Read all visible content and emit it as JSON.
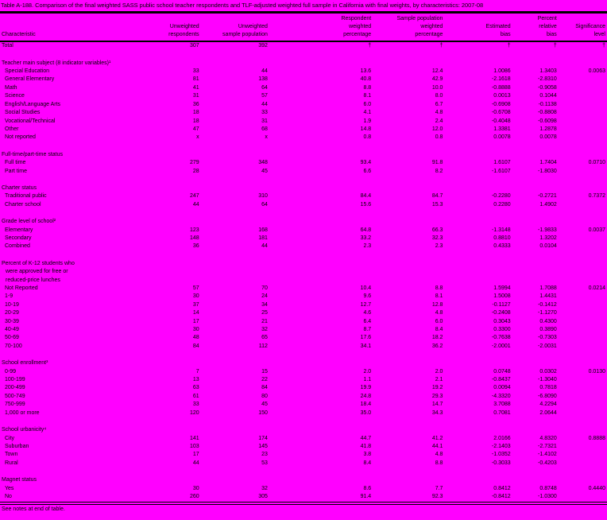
{
  "page": {
    "background_color": "#FF00FF",
    "text_color": "#000000"
  },
  "title": "Table A-188. Comparison of the final weighted SASS public school teacher respondents and TLF-adjusted weighted full sample in California with final weights, by characteristics: 2007-08",
  "footer": "See notes at end of table.",
  "table": {
    "columns": [
      "Characteristic",
      "Unweighted\nrespondents",
      "Unweighted\nsample population",
      "Respondent\nweighted\npercentage",
      "Sample population\nweighted\npercentage",
      "Estimated\nbias",
      "Percent\nrelative\nbias",
      "Significance\nlevel"
    ],
    "total_row": {
      "label": "Total",
      "cells": [
        "307",
        "392",
        "†",
        "†",
        "†",
        "†",
        "†"
      ]
    },
    "sections": [
      {
        "header_lines": [
          "Teacher main subject (8 indicator variables)¹"
        ],
        "rows": [
          {
            "label": "Special Education",
            "cells": [
              "33",
              "44",
              "13.6",
              "12.4",
              "1.0086",
              "1.3403",
              "0.0063"
            ]
          },
          {
            "label": "General Elementary",
            "cells": [
              "81",
              "138",
              "40.8",
              "42.9",
              "-2.1618",
              "-2.8310",
              ""
            ]
          },
          {
            "label": "Math",
            "cells": [
              "41",
              "64",
              "8.8",
              "10.0",
              "-0.8888",
              "-0.9058",
              ""
            ]
          },
          {
            "label": "Science",
            "cells": [
              "31",
              "57",
              "8.1",
              "8.0",
              "0.0013",
              "0.1044",
              ""
            ]
          },
          {
            "label": "English/Language Arts",
            "cells": [
              "36",
              "44",
              "6.0",
              "6.7",
              "-0.6908",
              "-0.1138",
              ""
            ]
          },
          {
            "label": "Social Studies",
            "cells": [
              "18",
              "33",
              "4.1",
              "4.8",
              "-0.6708",
              "-0.8808",
              ""
            ]
          },
          {
            "label": "Vocational/Technical",
            "cells": [
              "18",
              "31",
              "1.9",
              "2.4",
              "-0.4048",
              "-0.6098",
              ""
            ]
          },
          {
            "label": "Other",
            "cells": [
              "47",
              "68",
              "14.8",
              "12.0",
              "1.3381",
              "1.2878",
              ""
            ]
          },
          {
            "label": "Not reported",
            "cells": [
              "x",
              "x",
              "0.8",
              "0.8",
              "0.0078",
              "0.0078",
              ""
            ]
          }
        ]
      },
      {
        "header_lines": [
          "Full-time/part-time status"
        ],
        "rows": [
          {
            "label": "Full time",
            "cells": [
              "279",
              "348",
              "93.4",
              "91.8",
              "1.6107",
              "1.7404",
              "0.0710"
            ]
          },
          {
            "label": "Part time",
            "cells": [
              "28",
              "45",
              "6.6",
              "8.2",
              "-1.6107",
              "-1.8030",
              ""
            ]
          }
        ]
      },
      {
        "header_lines": [
          "Charter status"
        ],
        "rows": [
          {
            "label": "Traditional public",
            "cells": [
              "247",
              "310",
              "84.4",
              "84.7",
              "-0.2280",
              "-0.2721",
              "0.7372"
            ]
          },
          {
            "label": "Charter school",
            "cells": [
              "44",
              "64",
              "15.6",
              "15.3",
              "0.2280",
              "1.4902",
              ""
            ]
          }
        ]
      },
      {
        "header_lines": [
          "Grade level of school²"
        ],
        "rows": [
          {
            "label": "Elementary",
            "cells": [
              "123",
              "168",
              "64.8",
              "66.3",
              "-1.3148",
              "-1.9833",
              "0.0037"
            ]
          },
          {
            "label": "Secondary",
            "cells": [
              "148",
              "181",
              "33.2",
              "32.3",
              "0.8810",
              "1.3202",
              ""
            ]
          },
          {
            "label": "Combined",
            "cells": [
              "36",
              "44",
              "2.3",
              "2.3",
              "0.4333",
              "0.0104",
              ""
            ]
          }
        ]
      },
      {
        "header_lines": [
          "Percent of K-12 students who",
          "were approved for free or",
          "reduced-price lunches"
        ],
        "rows": [
          {
            "label": "Not Reported",
            "cells": [
              "57",
              "70",
              "10.4",
              "8.8",
              "1.5994",
              "1.7088",
              "0.0214"
            ]
          },
          {
            "label": "1-9",
            "cells": [
              "30",
              "24",
              "9.6",
              "8.1",
              "1.5008",
              "1.4431",
              ""
            ]
          },
          {
            "label": "10-19",
            "cells": [
              "37",
              "34",
              "12.7",
              "12.8",
              "-0.1127",
              "-0.1412",
              ""
            ]
          },
          {
            "label": "20-29",
            "cells": [
              "14",
              "25",
              "4.6",
              "4.8",
              "-0.2408",
              "-1.1270",
              ""
            ]
          },
          {
            "label": "30-39",
            "cells": [
              "17",
              "21",
              "6.4",
              "6.0",
              "0.3043",
              "0.4300",
              ""
            ]
          },
          {
            "label": "40-49",
            "cells": [
              "30",
              "32",
              "8.7",
              "8.4",
              "0.3300",
              "0.3890",
              ""
            ]
          },
          {
            "label": "50-69",
            "cells": [
              "48",
              "65",
              "17.6",
              "18.2",
              "-0.7638",
              "-0.7303",
              ""
            ]
          },
          {
            "label": "70-100",
            "cells": [
              "84",
              "112",
              "34.1",
              "36.2",
              "-2.0001",
              "-2.0031",
              ""
            ]
          }
        ]
      },
      {
        "header_lines": [
          "School enrollment³"
        ],
        "rows": [
          {
            "label": "0-99",
            "cells": [
              "7",
              "15",
              "2.0",
              "2.0",
              "0.0748",
              "0.0302",
              "0.0130"
            ]
          },
          {
            "label": "100-199",
            "cells": [
              "13",
              "22",
              "1.1",
              "2.1",
              "-0.8437",
              "-1.3040",
              ""
            ]
          },
          {
            "label": "200-499",
            "cells": [
              "63",
              "84",
              "19.9",
              "19.2",
              "0.0094",
              "0.7818",
              ""
            ]
          },
          {
            "label": "500-749",
            "cells": [
              "61",
              "80",
              "24.8",
              "29.3",
              "-4.3320",
              "-6.8090",
              ""
            ]
          },
          {
            "label": "750-999",
            "cells": [
              "33",
              "45",
              "18.4",
              "14.7",
              "3.7088",
              "4.2294",
              ""
            ]
          },
          {
            "label": "1,000 or more",
            "cells": [
              "120",
              "150",
              "35.0",
              "34.3",
              "0.7081",
              "2.0644",
              ""
            ]
          }
        ]
      },
      {
        "header_lines": [
          "School urbanicity⁴"
        ],
        "rows": [
          {
            "label": "City",
            "cells": [
              "141",
              "174",
              "44.7",
              "41.2",
              "2.0166",
              "4.8320",
              "0.8888"
            ]
          },
          {
            "label": "Suburban",
            "cells": [
              "103",
              "145",
              "41.8",
              "44.1",
              "-2.1403",
              "-2.7321",
              ""
            ]
          },
          {
            "label": "Town",
            "cells": [
              "17",
              "23",
              "3.8",
              "4.8",
              "-1.0352",
              "-1.4102",
              ""
            ]
          },
          {
            "label": "Rural",
            "cells": [
              "44",
              "53",
              "8.4",
              "8.8",
              "-0.3033",
              "-0.4203",
              ""
            ]
          }
        ]
      },
      {
        "header_lines": [
          "Magnet status"
        ],
        "rows": [
          {
            "label": "Yes",
            "cells": [
              "30",
              "32",
              "8.6",
              "7.7",
              "0.8412",
              "0.8748",
              "0.4440"
            ]
          },
          {
            "label": "No",
            "cells": [
              "260",
              "305",
              "91.4",
              "92.3",
              "-0.8412",
              "-1.0300",
              ""
            ]
          }
        ]
      }
    ]
  }
}
